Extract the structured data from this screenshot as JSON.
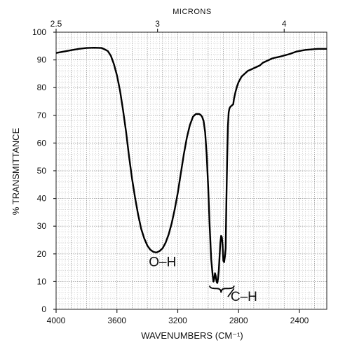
{
  "chart_data": {
    "type": "line",
    "title": "",
    "xlabel": "WAVENUMBERS (CM⁻¹)",
    "ylabel": "% TRANSMITTANCE",
    "top_axis_label": "MICRONS",
    "xlim": [
      4000,
      2220
    ],
    "ylim": [
      0,
      100
    ],
    "x_reversed": true,
    "grid": true,
    "x_ticks": [
      4000,
      3600,
      3200,
      2800,
      2400
    ],
    "y_ticks": [
      0,
      10,
      20,
      30,
      40,
      50,
      60,
      70,
      80,
      90,
      100
    ],
    "top_ticks": [
      {
        "label": "2.5",
        "wavenumber": 4000
      },
      {
        "label": "3",
        "wavenumber": 3333
      },
      {
        "label": "4",
        "wavenumber": 2500
      }
    ],
    "series": [
      {
        "x": [
          4000,
          3950,
          3900,
          3850,
          3800,
          3750,
          3700,
          3680,
          3660,
          3640,
          3620,
          3600,
          3580,
          3560,
          3540,
          3520,
          3500,
          3480,
          3460,
          3440,
          3420,
          3400,
          3380,
          3360,
          3340,
          3320,
          3300,
          3280,
          3260,
          3240,
          3220,
          3200,
          3180,
          3160,
          3140,
          3120,
          3100,
          3080,
          3060,
          3050,
          3040,
          3030,
          3020,
          3010,
          3000,
          2990,
          2980,
          2970,
          2965,
          2960,
          2955,
          2950,
          2945,
          2940,
          2935,
          2930,
          2925,
          2920,
          2915,
          2910,
          2905,
          2900,
          2895,
          2890,
          2885,
          2880,
          2875,
          2870,
          2865,
          2860,
          2855,
          2850,
          2845,
          2840,
          2835,
          2830,
          2820,
          2810,
          2800,
          2790,
          2780,
          2770,
          2760,
          2750,
          2740,
          2720,
          2700,
          2680,
          2660,
          2640,
          2620,
          2600,
          2580,
          2560,
          2540,
          2520,
          2500,
          2480,
          2460,
          2440,
          2420,
          2400,
          2380,
          2360,
          2340,
          2320,
          2300,
          2280,
          2260,
          2240,
          2220
        ],
        "y": [
          92.5,
          93,
          93.5,
          94,
          94.3,
          94.4,
          94.3,
          93.8,
          93.2,
          91.5,
          88.5,
          84.5,
          79,
          72,
          64,
          55,
          47,
          40,
          34,
          29,
          25.5,
          23,
          21.5,
          20.7,
          20.5,
          21,
          22,
          24,
          27,
          31,
          36,
          42,
          49,
          56,
          62,
          66.5,
          69.5,
          70.5,
          70.5,
          70.2,
          69.5,
          68,
          64,
          56,
          44,
          30,
          18,
          12,
          10,
          11,
          13,
          12,
          10,
          9.5,
          11,
          14,
          19,
          24,
          26.5,
          26,
          23,
          17.5,
          17,
          19,
          22,
          40,
          55,
          66,
          71,
          72.5,
          73,
          73.3,
          73.5,
          73.8,
          74,
          76,
          78.5,
          80.5,
          82,
          83,
          84,
          84.5,
          85,
          85.5,
          86,
          86.5,
          87,
          87.5,
          88,
          89,
          89.5,
          90,
          90.5,
          90.8,
          91,
          91.3,
          91.6,
          91.9,
          92.2,
          92.6,
          93,
          93.2,
          93.4,
          93.6,
          93.7,
          93.8,
          93.9,
          94,
          94,
          94,
          94
        ]
      }
    ],
    "annotations": [
      {
        "text": "O–H",
        "x": 3300,
        "y": 15.5
      },
      {
        "text": "C–H",
        "x": 2760,
        "y": 3
      }
    ]
  }
}
